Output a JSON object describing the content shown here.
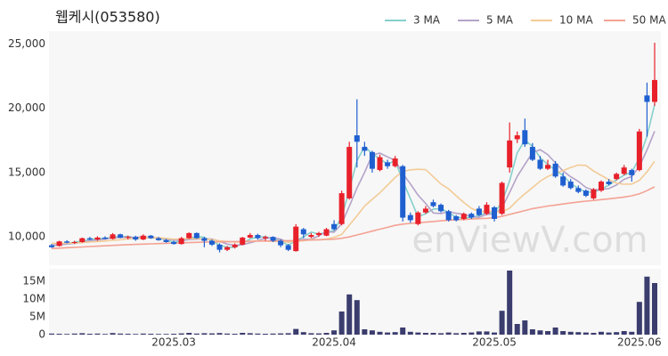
{
  "chart_data": {
    "type": "candlestick",
    "title": "웹케시(053580)",
    "watermark": "enViewV.com",
    "categories": [
      null,
      null,
      null,
      null,
      null,
      null,
      null,
      null,
      null,
      null,
      null,
      null,
      null,
      null,
      null,
      null,
      "2025.03",
      null,
      null,
      null,
      null,
      null,
      null,
      null,
      null,
      null,
      null,
      null,
      null,
      null,
      null,
      null,
      null,
      null,
      null,
      null,
      null,
      "2025.04",
      null,
      null,
      null,
      null,
      null,
      null,
      null,
      null,
      null,
      null,
      null,
      null,
      null,
      null,
      null,
      null,
      null,
      null,
      null,
      null,
      "2025.05",
      null,
      null,
      null,
      null,
      null,
      null,
      null,
      null,
      null,
      null,
      null,
      null,
      null,
      null,
      null,
      null,
      null,
      null,
      "2025.06",
      null,
      null
    ],
    "open": [
      9350,
      9300,
      9650,
      9550,
      9600,
      9900,
      9800,
      9950,
      9850,
      10200,
      9950,
      10000,
      9800,
      10100,
      9900,
      9750,
      9600,
      9450,
      9900,
      10300,
      9900,
      9700,
      9400,
      9000,
      9200,
      9400,
      9950,
      10150,
      9900,
      10000,
      9700,
      9350,
      8900,
      10600,
      10000,
      10150,
      10100,
      11000,
      11000,
      13000,
      17900,
      17000,
      16600,
      15200,
      15800,
      15500,
      15500,
      11700,
      11000,
      11900,
      12700,
      12500,
      12000,
      11600,
      11400,
      11800,
      12200,
      11800,
      12300,
      11800,
      15400,
      17600,
      18300,
      17000,
      16000,
      15300,
      15700,
      14700,
      14300,
      13800,
      13600,
      13000,
      13600,
      14300,
      14500,
      14900,
      15200,
      15200,
      21000,
      20500
    ],
    "high": [
      9450,
      9700,
      9750,
      9700,
      9950,
      10000,
      10050,
      10050,
      10300,
      10250,
      10100,
      10100,
      10200,
      10150,
      10000,
      9850,
      9700,
      10000,
      10350,
      10350,
      10000,
      9800,
      9500,
      9300,
      9500,
      10000,
      10300,
      10250,
      10100,
      10050,
      9800,
      9450,
      11000,
      10700,
      10300,
      10400,
      10700,
      11300,
      13600,
      17400,
      20700,
      17400,
      16700,
      16400,
      16000,
      16300,
      15600,
      11900,
      12000,
      12400,
      12900,
      12600,
      12100,
      11700,
      11900,
      11900,
      12400,
      12700,
      12400,
      14300,
      18900,
      18200,
      19200,
      17300,
      16300,
      16000,
      15900,
      15000,
      14500,
      14000,
      13700,
      13800,
      14400,
      14500,
      15000,
      15600,
      15300,
      18400,
      22000,
      25100
    ],
    "low": [
      9150,
      9250,
      9500,
      9450,
      9550,
      9750,
      9700,
      9800,
      9800,
      9900,
      9800,
      9700,
      9750,
      9850,
      9700,
      9550,
      9400,
      9400,
      9850,
      9850,
      9200,
      9300,
      8800,
      8900,
      9100,
      9350,
      9900,
      9800,
      9700,
      9600,
      9200,
      8900,
      8850,
      9900,
      9900,
      10000,
      10050,
      10500,
      10900,
      12900,
      15400,
      16300,
      15000,
      15100,
      15300,
      15400,
      11200,
      11100,
      10900,
      11800,
      12300,
      11900,
      11200,
      11200,
      11300,
      11400,
      11600,
      11700,
      11200,
      11700,
      15000,
      17300,
      17000,
      15900,
      15200,
      15200,
      14600,
      13900,
      13700,
      13400,
      13100,
      12900,
      13500,
      14000,
      14400,
      14800,
      14300,
      15100,
      17800,
      20200
    ],
    "close": [
      9200,
      9650,
      9550,
      9600,
      9900,
      9800,
      9950,
      9850,
      10200,
      9950,
      10000,
      9800,
      10100,
      9900,
      9750,
      9600,
      9450,
      9900,
      10300,
      9900,
      9700,
      9400,
      9000,
      9200,
      9400,
      9950,
      10150,
      9900,
      10000,
      9700,
      9350,
      9000,
      10800,
      10200,
      10150,
      10300,
      10600,
      10600,
      13400,
      17000,
      17400,
      16700,
      15300,
      16200,
      15500,
      16100,
      11500,
      11300,
      11900,
      12200,
      12400,
      12000,
      11300,
      11300,
      11800,
      11500,
      11700,
      12500,
      11400,
      14200,
      17500,
      17900,
      17200,
      16000,
      15300,
      15600,
      14700,
      14000,
      13800,
      13500,
      13200,
      13700,
      14300,
      14100,
      14900,
      15400,
      14800,
      18200,
      20500,
      22200
    ],
    "up_color": "#e8202a",
    "down_color": "#1f5fd0",
    "ylim": [
      7800,
      26000
    ],
    "yticks": [
      {
        "value": 10000,
        "label": "10,000"
      },
      {
        "value": 15000,
        "label": "15,000"
      },
      {
        "value": 20000,
        "label": "20,000"
      },
      {
        "value": 25000,
        "label": "25,000"
      }
    ],
    "series": [
      {
        "name": "3 MA",
        "color": "#86d0cc",
        "values": [
          9300,
          9400,
          9467,
          9600,
          9683,
          9767,
          9883,
          9867,
          10000,
          10000,
          10050,
          9917,
          9967,
          9933,
          9917,
          9750,
          9600,
          9650,
          9883,
          10033,
          9967,
          9667,
          9367,
          9200,
          9200,
          9517,
          9833,
          10000,
          10017,
          9867,
          9683,
          9350,
          9717,
          10000,
          10383,
          10217,
          10350,
          10500,
          11533,
          13667,
          15933,
          17033,
          16467,
          16067,
          15667,
          15933,
          14367,
          12967,
          11567,
          11800,
          12167,
          12200,
          11900,
          11533,
          11467,
          11533,
          11667,
          11900,
          11867,
          12700,
          14367,
          16533,
          17533,
          17033,
          16167,
          15633,
          15200,
          14767,
          14167,
          13767,
          13500,
          13467,
          13733,
          14033,
          14433,
          14800,
          15033,
          16133,
          17833,
          20300
        ]
      },
      {
        "name": "5 MA",
        "color": "#b4a3c9",
        "values": [
          9350,
          9400,
          9450,
          9500,
          9580,
          9700,
          9760,
          9830,
          9940,
          9950,
          9990,
          9960,
          10010,
          9950,
          9910,
          9830,
          9760,
          9720,
          9800,
          9830,
          9850,
          9840,
          9660,
          9440,
          9340,
          9390,
          9540,
          9720,
          9880,
          9940,
          9820,
          9590,
          9770,
          9810,
          9820,
          10090,
          10410,
          10370,
          11010,
          12380,
          13800,
          15030,
          16360,
          16520,
          16220,
          15960,
          14920,
          14120,
          13260,
          12600,
          11860,
          11820,
          11960,
          11840,
          11760,
          11580,
          11520,
          11760,
          11780,
          12260,
          13460,
          14700,
          15640,
          16560,
          16780,
          16400,
          15760,
          15120,
          14680,
          14320,
          13840,
          13640,
          13700,
          13760,
          14040,
          14480,
          14700,
          15480,
          16760,
          18220
        ]
      },
      {
        "name": "10 MA",
        "color": "#f3cb96",
        "values": [
          9500,
          9500,
          9510,
          9530,
          9560,
          9600,
          9640,
          9680,
          9740,
          9780,
          9850,
          9870,
          9920,
          9950,
          9940,
          9880,
          9830,
          9840,
          9880,
          9860,
          9830,
          9790,
          9700,
          9640,
          9600,
          9600,
          9650,
          9700,
          9680,
          9660,
          9640,
          9600,
          9650,
          9700,
          9810,
          9780,
          9830,
          9970,
          10190,
          10920,
          11640,
          12410,
          12920,
          13430,
          14030,
          14620,
          15100,
          15220,
          15260,
          15230,
          14680,
          14110,
          13740,
          13200,
          12670,
          12220,
          11960,
          12020,
          11970,
          11930,
          12240,
          12830,
          13360,
          13830,
          14340,
          14700,
          14960,
          15160,
          15400,
          15590,
          15560,
          15120,
          14790,
          14450,
          14180,
          14100,
          14110,
          14400,
          15060,
          15880
        ]
      },
      {
        "name": "50 MA",
        "color": "#f4a293",
        "values": [
          9100,
          9130,
          9160,
          9190,
          9220,
          9250,
          9280,
          9310,
          9340,
          9370,
          9400,
          9420,
          9440,
          9460,
          9480,
          9500,
          9520,
          9540,
          9560,
          9580,
          9600,
          9610,
          9620,
          9630,
          9640,
          9650,
          9660,
          9670,
          9680,
          9690,
          9700,
          9710,
          9720,
          9740,
          9760,
          9780,
          9800,
          9830,
          9900,
          10000,
          10150,
          10300,
          10450,
          10600,
          10750,
          10900,
          11000,
          11050,
          11100,
          11150,
          11200,
          11250,
          11300,
          11330,
          11360,
          11390,
          11420,
          11450,
          11500,
          11600,
          11750,
          11900,
          12050,
          12200,
          12300,
          12400,
          12480,
          12560,
          12640,
          12720,
          12780,
          12840,
          12900,
          12960,
          13030,
          13100,
          13200,
          13350,
          13600,
          13900
        ]
      }
    ],
    "volume": {
      "color": "#3b3d6e",
      "ylim": [
        0,
        18500000
      ],
      "yticks": [
        0,
        {
          "value": 5000000,
          "label": "5M"
        },
        {
          "value": 10000000,
          "label": "10M"
        },
        {
          "value": 15000000,
          "label": "15M"
        }
      ],
      "values": [
        300000,
        250000,
        200000,
        300000,
        400000,
        250000,
        300000,
        200000,
        450000,
        300000,
        250000,
        200000,
        300000,
        250000,
        200000,
        200000,
        250000,
        350000,
        500000,
        300000,
        400000,
        350000,
        450000,
        300000,
        250000,
        500000,
        400000,
        300000,
        250000,
        300000,
        350000,
        400000,
        1600000,
        700000,
        400000,
        350000,
        500000,
        1200000,
        6500000,
        11300000,
        9700000,
        1500000,
        1200000,
        800000,
        600000,
        700000,
        2000000,
        800000,
        600000,
        500000,
        500000,
        400000,
        600000,
        400000,
        500000,
        600000,
        900000,
        900000,
        600000,
        6700000,
        18000000,
        3000000,
        4000000,
        1500000,
        1200000,
        1000000,
        2000000,
        1000000,
        800000,
        700000,
        600000,
        500000,
        800000,
        600000,
        700000,
        1000000,
        800000,
        9200000,
        16300000,
        14500000
      ]
    }
  }
}
